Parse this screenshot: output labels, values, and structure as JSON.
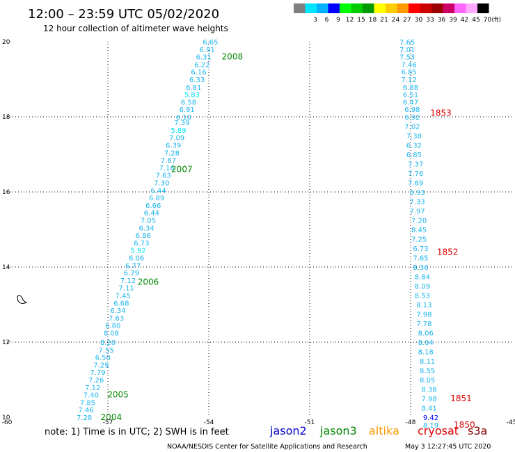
{
  "header": {
    "title": "12:00 – 23:59 UTC 05/02/2020",
    "subtitle": "12 hour collection of altimeter wave heights"
  },
  "legend": {
    "unit": "(ft)",
    "bins": [
      {
        "label": "",
        "color": "#7f7f7f"
      },
      {
        "label": "3",
        "color": "#00e5ff"
      },
      {
        "label": "6",
        "color": "#00b2ff"
      },
      {
        "label": "9",
        "color": "#0000ff"
      },
      {
        "label": "12",
        "color": "#00ff00"
      },
      {
        "label": "15",
        "color": "#00cc00"
      },
      {
        "label": "18",
        "color": "#009900"
      },
      {
        "label": "21",
        "color": "#ffff00"
      },
      {
        "label": "24",
        "color": "#ffcc00"
      },
      {
        "label": "27",
        "color": "#ff9900"
      },
      {
        "label": "30",
        "color": "#ff0000"
      },
      {
        "label": "33",
        "color": "#cc0000"
      },
      {
        "label": "36",
        "color": "#990000"
      },
      {
        "label": "39",
        "color": "#cc0066"
      },
      {
        "label": "42",
        "color": "#ff66ff"
      },
      {
        "label": "45",
        "color": "#ffaaff"
      },
      {
        "label": "70",
        "color": "#000000"
      }
    ]
  },
  "footer": {
    "note": "note:  1) Time is in UTC;  2) SWH is in feet",
    "satellites": [
      {
        "name": "jason2",
        "color": "#0000cc"
      },
      {
        "name": "jason3",
        "color": "#008800"
      },
      {
        "name": "altika",
        "color": "#ff9900"
      },
      {
        "name": "cryosat",
        "color": "#dd0000"
      },
      {
        "name": "s3a",
        "color": "#880000"
      }
    ],
    "credit": "NOAA/NESDIS Center for Satellite Applications and Research",
    "timestamp": "May  3 12:27:45 UTC 2020"
  },
  "chart_data": {
    "type": "scatter",
    "xlim": [
      -60,
      -45
    ],
    "ylim": [
      10,
      20
    ],
    "xticks": [
      "-60",
      "-57",
      "-54",
      "-51",
      "-48",
      "-45"
    ],
    "yticks": [
      "10",
      "12",
      "14",
      "16",
      "18",
      "20"
    ],
    "grid": true,
    "tracks": [
      {
        "satellite": "jason3",
        "points": [
          {
            "x": -57.7,
            "y": 10.0,
            "v": "7.28"
          },
          {
            "x": -57.65,
            "y": 10.2,
            "v": "7.46"
          },
          {
            "x": -57.6,
            "y": 10.4,
            "v": "7.85"
          },
          {
            "x": -57.5,
            "y": 10.6,
            "v": "7.40"
          },
          {
            "x": -57.45,
            "y": 10.8,
            "v": "7.12"
          },
          {
            "x": -57.35,
            "y": 11.0,
            "v": "7.26"
          },
          {
            "x": -57.3,
            "y": 11.2,
            "v": "7.79"
          },
          {
            "x": -57.2,
            "y": 11.4,
            "v": "7.29"
          },
          {
            "x": -57.15,
            "y": 11.6,
            "v": "6.50"
          },
          {
            "x": -57.05,
            "y": 11.8,
            "v": "7.55"
          },
          {
            "x": -57.0,
            "y": 12.0,
            "v": "8.20"
          },
          {
            "x": -56.9,
            "y": 12.25,
            "v": "8.08"
          },
          {
            "x": -56.85,
            "y": 12.45,
            "v": "6.80"
          },
          {
            "x": -56.75,
            "y": 12.65,
            "v": "7.63"
          },
          {
            "x": -56.7,
            "y": 12.85,
            "v": "6.34"
          },
          {
            "x": -56.6,
            "y": 13.05,
            "v": "6.68"
          },
          {
            "x": -56.55,
            "y": 13.25,
            "v": "7.45"
          },
          {
            "x": -56.45,
            "y": 13.45,
            "v": "7.11"
          },
          {
            "x": -56.4,
            "y": 13.65,
            "v": "7.12"
          },
          {
            "x": -56.3,
            "y": 13.85,
            "v": "6.79"
          },
          {
            "x": -56.25,
            "y": 14.05,
            "v": "6.77"
          },
          {
            "x": -56.15,
            "y": 14.25,
            "v": "6.06"
          },
          {
            "x": -56.1,
            "y": 14.45,
            "v": "5.92"
          },
          {
            "x": -56.0,
            "y": 14.65,
            "v": "6.73"
          },
          {
            "x": -55.95,
            "y": 14.85,
            "v": "6.86"
          },
          {
            "x": -55.85,
            "y": 15.05,
            "v": "6.34"
          },
          {
            "x": -55.8,
            "y": 15.25,
            "v": "7.05"
          },
          {
            "x": -55.7,
            "y": 15.45,
            "v": "6.44"
          },
          {
            "x": -55.65,
            "y": 15.65,
            "v": "6.66"
          },
          {
            "x": -55.55,
            "y": 15.85,
            "v": "6.89"
          },
          {
            "x": -55.5,
            "y": 16.05,
            "v": "6.44"
          },
          {
            "x": -55.4,
            "y": 16.25,
            "v": "7.30"
          },
          {
            "x": -55.35,
            "y": 16.45,
            "v": "7.63"
          },
          {
            "x": -55.25,
            "y": 16.65,
            "v": "7.16"
          },
          {
            "x": -55.2,
            "y": 16.85,
            "v": "7.67"
          },
          {
            "x": -55.1,
            "y": 17.05,
            "v": "7.28"
          },
          {
            "x": -55.05,
            "y": 17.25,
            "v": "6.39"
          },
          {
            "x": -54.95,
            "y": 17.45,
            "v": "7.09"
          },
          {
            "x": -54.9,
            "y": 17.65,
            "v": "5.89"
          },
          {
            "x": -54.8,
            "y": 17.85,
            "v": "7.39"
          },
          {
            "x": -54.75,
            "y": 18.0,
            "v": "6.10"
          },
          {
            "x": -54.65,
            "y": 18.2,
            "v": "6.91"
          },
          {
            "x": -54.6,
            "y": 18.4,
            "v": "6.58"
          },
          {
            "x": -54.5,
            "y": 18.6,
            "v": "5.83"
          },
          {
            "x": -54.45,
            "y": 18.8,
            "v": "6.81"
          },
          {
            "x": -54.35,
            "y": 19.0,
            "v": "6.33"
          },
          {
            "x": -54.3,
            "y": 19.2,
            "v": "6.16"
          },
          {
            "x": -54.2,
            "y": 19.4,
            "v": "6.22"
          },
          {
            "x": -54.15,
            "y": 19.6,
            "v": "6.31"
          },
          {
            "x": -54.05,
            "y": 19.8,
            "v": "6.91"
          },
          {
            "x": -53.95,
            "y": 20.0,
            "v": "6.65"
          }
        ],
        "times": [
          {
            "x": -56.9,
            "y": 10.0,
            "label": "2004"
          },
          {
            "x": -56.7,
            "y": 10.6,
            "label": "2005"
          },
          {
            "x": -55.8,
            "y": 13.6,
            "label": "2006"
          },
          {
            "x": -54.8,
            "y": 16.6,
            "label": "2007"
          },
          {
            "x": -53.3,
            "y": 19.6,
            "label": "2008"
          }
        ]
      },
      {
        "satellite": "cryosat",
        "points": [
          {
            "x": -48.1,
            "y": 20.0,
            "v": "7.65"
          },
          {
            "x": -48.1,
            "y": 19.8,
            "v": "7.01"
          },
          {
            "x": -48.1,
            "y": 19.6,
            "v": "7.53"
          },
          {
            "x": -48.05,
            "y": 19.4,
            "v": "7.46"
          },
          {
            "x": -48.05,
            "y": 19.2,
            "v": "6.85"
          },
          {
            "x": -48.05,
            "y": 19.0,
            "v": "7.12"
          },
          {
            "x": -48.0,
            "y": 18.8,
            "v": "6.88"
          },
          {
            "x": -48.0,
            "y": 18.6,
            "v": "6.51"
          },
          {
            "x": -48.0,
            "y": 18.4,
            "v": "6.47"
          },
          {
            "x": -47.95,
            "y": 18.2,
            "v": "6.98"
          },
          {
            "x": -47.95,
            "y": 18.0,
            "v": "6.92"
          },
          {
            "x": -47.95,
            "y": 17.75,
            "v": "7.02"
          },
          {
            "x": -47.9,
            "y": 17.5,
            "v": "7.38"
          },
          {
            "x": -47.9,
            "y": 17.25,
            "v": "6.32"
          },
          {
            "x": -47.9,
            "y": 17.0,
            "v": "6.85"
          },
          {
            "x": -47.85,
            "y": 16.75,
            "v": "7.37"
          },
          {
            "x": -47.85,
            "y": 16.5,
            "v": "7.76"
          },
          {
            "x": -47.85,
            "y": 16.25,
            "v": "7.69"
          },
          {
            "x": -47.8,
            "y": 16.0,
            "v": "6.93"
          },
          {
            "x": -47.8,
            "y": 15.75,
            "v": "7.33"
          },
          {
            "x": -47.8,
            "y": 15.5,
            "v": "7.97"
          },
          {
            "x": -47.75,
            "y": 15.25,
            "v": "7.20"
          },
          {
            "x": -47.75,
            "y": 15.0,
            "v": "8.45"
          },
          {
            "x": -47.75,
            "y": 14.75,
            "v": "7.25"
          },
          {
            "x": -47.7,
            "y": 14.5,
            "v": "6.73"
          },
          {
            "x": -47.7,
            "y": 14.25,
            "v": "7.65"
          },
          {
            "x": -47.7,
            "y": 14.0,
            "v": "8.36"
          },
          {
            "x": -47.65,
            "y": 13.75,
            "v": "8.84"
          },
          {
            "x": -47.65,
            "y": 13.5,
            "v": "8.09"
          },
          {
            "x": -47.65,
            "y": 13.25,
            "v": "8.53"
          },
          {
            "x": -47.6,
            "y": 13.0,
            "v": "8.13"
          },
          {
            "x": -47.6,
            "y": 12.75,
            "v": "7.98"
          },
          {
            "x": -47.6,
            "y": 12.5,
            "v": "7.78"
          },
          {
            "x": -47.55,
            "y": 12.25,
            "v": "8.06"
          },
          {
            "x": -47.55,
            "y": 12.0,
            "v": "8.04"
          },
          {
            "x": -47.55,
            "y": 11.75,
            "v": "8.18"
          },
          {
            "x": -47.5,
            "y": 11.5,
            "v": "8.11"
          },
          {
            "x": -47.5,
            "y": 11.25,
            "v": "8.55"
          },
          {
            "x": -47.5,
            "y": 11.0,
            "v": "8.05"
          },
          {
            "x": -47.45,
            "y": 10.75,
            "v": "8.38"
          },
          {
            "x": -47.45,
            "y": 10.5,
            "v": "7.98"
          },
          {
            "x": -47.45,
            "y": 10.25,
            "v": "8.41"
          },
          {
            "x": -47.4,
            "y": 10.0,
            "v": "9.42"
          },
          {
            "x": -47.4,
            "y": 9.8,
            "v": "8.19"
          }
        ],
        "times": [
          {
            "x": -46.4,
            "y": 9.8,
            "label": "1850"
          },
          {
            "x": -46.5,
            "y": 10.5,
            "label": "1851"
          },
          {
            "x": -46.9,
            "y": 14.4,
            "label": "1852"
          },
          {
            "x": -47.1,
            "y": 18.1,
            "label": "1853"
          }
        ]
      }
    ]
  }
}
